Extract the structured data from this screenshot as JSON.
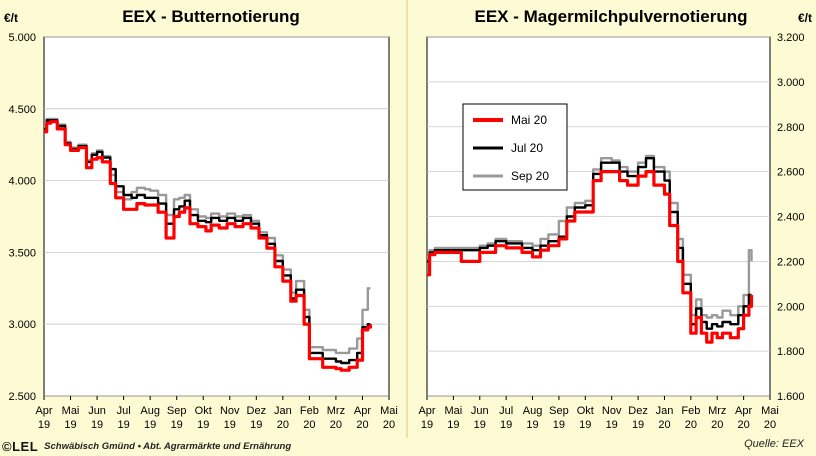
{
  "footer": {
    "logo_text": "©LEL",
    "institution": "Schwäbisch Gmünd • Abt. Agrarmärkte und Ernährung",
    "source": "Quelle: EEX"
  },
  "chart_data": [
    {
      "type": "line",
      "title": "EEX - Butternotierung",
      "unit": "€/t",
      "ylim": [
        2500,
        5000
      ],
      "yticks": [
        "2.500",
        "3.000",
        "3.500",
        "4.000",
        "4.500",
        "5.000"
      ],
      "y_axis_side": "left",
      "x_ticks_month": [
        "Apr",
        "Mai",
        "Jun",
        "Jul",
        "Aug",
        "Sep",
        "Okt",
        "Nov",
        "Dez",
        "Jan",
        "Feb",
        "Mrz",
        "Apr",
        "Mai"
      ],
      "x_ticks_year": [
        "19",
        "19",
        "19",
        "19",
        "19",
        "19",
        "19",
        "19",
        "19",
        "20",
        "20",
        "20",
        "20",
        "20"
      ],
      "grid": true,
      "legend": "none",
      "series": [
        {
          "name": "Mai 20",
          "color": "#ff0000",
          "x": [
            0,
            0.1,
            0.25,
            0.5,
            0.8,
            1.0,
            1.3,
            1.6,
            1.8,
            2.0,
            2.2,
            2.5,
            2.7,
            3.0,
            3.3,
            3.5,
            3.8,
            4.0,
            4.3,
            4.6,
            4.9,
            5.1,
            5.3,
            5.5,
            5.8,
            6.1,
            6.3,
            6.6,
            6.9,
            7.2,
            7.5,
            7.8,
            8.1,
            8.4,
            8.7,
            9.0,
            9.3,
            9.5,
            9.8,
            10.0,
            10.3,
            10.5,
            10.7,
            11.0,
            11.2,
            11.5,
            11.8,
            12.0,
            12.2,
            12.3
          ],
          "y": [
            4340,
            4400,
            4410,
            4360,
            4250,
            4210,
            4230,
            4090,
            4150,
            4160,
            4130,
            3980,
            3880,
            3800,
            3800,
            3840,
            3830,
            3830,
            3780,
            3600,
            3750,
            3780,
            3810,
            3700,
            3680,
            3650,
            3690,
            3670,
            3700,
            3680,
            3700,
            3670,
            3600,
            3530,
            3400,
            3300,
            3160,
            3200,
            3000,
            2760,
            2760,
            2700,
            2700,
            2690,
            2680,
            2700,
            2750,
            2960,
            2980,
            3000
          ]
        },
        {
          "name": "Jul 20",
          "color": "#000000",
          "x": [
            0,
            0.1,
            0.25,
            0.5,
            0.8,
            1.0,
            1.3,
            1.6,
            1.8,
            2.0,
            2.2,
            2.5,
            2.7,
            3.0,
            3.3,
            3.5,
            3.8,
            4.0,
            4.3,
            4.6,
            4.9,
            5.1,
            5.3,
            5.5,
            5.8,
            6.1,
            6.3,
            6.6,
            6.9,
            7.2,
            7.5,
            7.8,
            8.1,
            8.4,
            8.7,
            9.0,
            9.3,
            9.5,
            9.8,
            10.0,
            10.3,
            10.5,
            10.7,
            11.0,
            11.2,
            11.5,
            11.8,
            12.0,
            12.2,
            12.3
          ],
          "y": [
            4360,
            4420,
            4420,
            4380,
            4260,
            4220,
            4240,
            4130,
            4180,
            4200,
            4160,
            4080,
            3960,
            3900,
            3880,
            3900,
            3880,
            3880,
            3840,
            3700,
            3800,
            3820,
            3860,
            3760,
            3720,
            3710,
            3740,
            3720,
            3740,
            3720,
            3740,
            3700,
            3620,
            3560,
            3440,
            3340,
            3180,
            3240,
            3050,
            2800,
            2800,
            2760,
            2760,
            2740,
            2730,
            2750,
            2800,
            2980,
            3000,
            3000
          ]
        },
        {
          "name": "Sep 20",
          "color": "#999999",
          "x": [
            0,
            0.1,
            0.25,
            0.5,
            0.8,
            1.0,
            1.3,
            1.6,
            1.8,
            2.0,
            2.2,
            2.5,
            2.7,
            3.0,
            3.3,
            3.5,
            3.8,
            4.0,
            4.3,
            4.6,
            4.9,
            5.1,
            5.3,
            5.5,
            5.8,
            6.1,
            6.3,
            6.6,
            6.9,
            7.2,
            7.5,
            7.8,
            8.1,
            8.4,
            8.7,
            9.0,
            9.3,
            9.5,
            9.8,
            10.0,
            10.3,
            10.5,
            10.7,
            11.0,
            11.2,
            11.5,
            11.8,
            12.0,
            12.2,
            12.3
          ],
          "y": [
            4370,
            4430,
            4430,
            4390,
            4270,
            4230,
            4250,
            4140,
            4190,
            4210,
            4170,
            4040,
            3920,
            3870,
            3920,
            3950,
            3940,
            3930,
            3900,
            3760,
            3870,
            3880,
            3900,
            3800,
            3750,
            3740,
            3770,
            3750,
            3770,
            3750,
            3760,
            3720,
            3640,
            3600,
            3480,
            3380,
            3220,
            3300,
            3100,
            2840,
            2840,
            2820,
            2820,
            2800,
            2800,
            2830,
            2900,
            3100,
            3250,
            3250
          ]
        }
      ]
    },
    {
      "type": "line",
      "title": "EEX - Magermilchpulvernotierung",
      "unit": "€/t",
      "ylim": [
        1600,
        3200
      ],
      "yticks": [
        "1.600",
        "1.800",
        "2.000",
        "2.200",
        "2.400",
        "2.600",
        "2.800",
        "3.000",
        "3.200"
      ],
      "y_axis_side": "right",
      "x_ticks_month": [
        "Apr",
        "Mai",
        "Jun",
        "Jul",
        "Aug",
        "Sep",
        "Okt",
        "Nov",
        "Dez",
        "Jan",
        "Feb",
        "Mrz",
        "Apr",
        "Mai"
      ],
      "x_ticks_year": [
        "19",
        "19",
        "19",
        "19",
        "19",
        "19",
        "19",
        "19",
        "19",
        "20",
        "20",
        "20",
        "20",
        "20"
      ],
      "grid": true,
      "legend": "upper-left",
      "series": [
        {
          "name": "Mai 20",
          "color": "#ff0000",
          "x": [
            0,
            0.1,
            0.3,
            0.6,
            1.0,
            1.3,
            1.6,
            2.0,
            2.3,
            2.6,
            3.0,
            3.3,
            3.6,
            4.0,
            4.3,
            4.6,
            5.0,
            5.3,
            5.6,
            6.0,
            6.3,
            6.6,
            7.0,
            7.3,
            7.6,
            8.0,
            8.3,
            8.6,
            9.0,
            9.2,
            9.5,
            9.7,
            10.0,
            10.2,
            10.4,
            10.6,
            10.8,
            11.0,
            11.2,
            11.5,
            11.8,
            12.0,
            12.2,
            12.3
          ],
          "y": [
            2140,
            2230,
            2240,
            2240,
            2240,
            2200,
            2200,
            2240,
            2240,
            2270,
            2260,
            2260,
            2240,
            2220,
            2250,
            2270,
            2300,
            2380,
            2420,
            2420,
            2560,
            2600,
            2600,
            2560,
            2540,
            2580,
            2600,
            2540,
            2500,
            2360,
            2200,
            2060,
            1880,
            1950,
            1880,
            1840,
            1880,
            1860,
            1880,
            1860,
            1900,
            1960,
            2000,
            2050
          ]
        },
        {
          "name": "Jul 20",
          "color": "#000000",
          "x": [
            0,
            0.1,
            0.3,
            0.6,
            1.0,
            1.3,
            1.6,
            2.0,
            2.3,
            2.6,
            3.0,
            3.3,
            3.6,
            4.0,
            4.3,
            4.6,
            5.0,
            5.3,
            5.6,
            6.0,
            6.3,
            6.6,
            7.0,
            7.3,
            7.6,
            8.0,
            8.3,
            8.6,
            9.0,
            9.2,
            9.5,
            9.7,
            10.0,
            10.2,
            10.4,
            10.6,
            10.8,
            11.0,
            11.2,
            11.5,
            11.8,
            12.0,
            12.2,
            12.3
          ],
          "y": [
            2200,
            2240,
            2250,
            2250,
            2250,
            2250,
            2250,
            2260,
            2270,
            2290,
            2280,
            2280,
            2260,
            2250,
            2270,
            2290,
            2310,
            2400,
            2440,
            2450,
            2590,
            2640,
            2640,
            2600,
            2580,
            2620,
            2660,
            2600,
            2560,
            2420,
            2260,
            2100,
            1920,
            1990,
            1930,
            1900,
            1920,
            1910,
            1930,
            1920,
            1960,
            2000,
            2050,
            2050
          ]
        },
        {
          "name": "Sep 20",
          "color": "#999999",
          "x": [
            0,
            0.1,
            0.3,
            0.6,
            1.0,
            1.3,
            1.6,
            2.0,
            2.3,
            2.6,
            3.0,
            3.3,
            3.6,
            4.0,
            4.3,
            4.6,
            5.0,
            5.3,
            5.6,
            6.0,
            6.3,
            6.6,
            7.0,
            7.3,
            7.6,
            8.0,
            8.3,
            8.6,
            9.0,
            9.2,
            9.5,
            9.7,
            10.0,
            10.2,
            10.4,
            10.6,
            10.8,
            11.0,
            11.2,
            11.5,
            11.8,
            12.0,
            12.2,
            12.3
          ],
          "y": [
            2220,
            2250,
            2260,
            2260,
            2260,
            2260,
            2260,
            2270,
            2280,
            2300,
            2290,
            2290,
            2280,
            2270,
            2300,
            2320,
            2380,
            2440,
            2460,
            2470,
            2610,
            2660,
            2650,
            2620,
            2600,
            2640,
            2670,
            2620,
            2600,
            2460,
            2300,
            2140,
            1960,
            2030,
            1960,
            1950,
            1960,
            1950,
            1980,
            1960,
            2000,
            2050,
            2250,
            2200
          ]
        }
      ]
    }
  ]
}
